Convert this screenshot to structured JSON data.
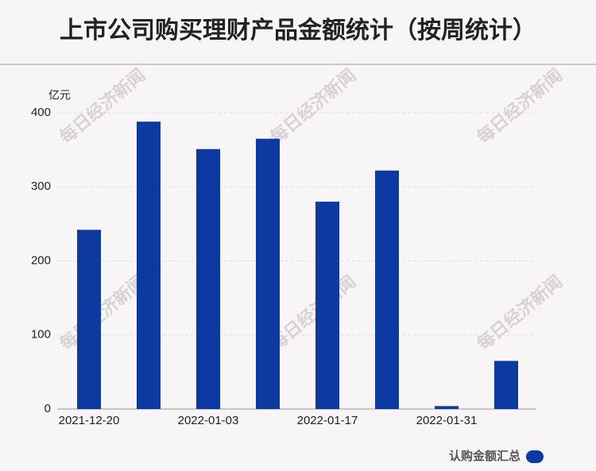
{
  "chart_data": {
    "type": "bar",
    "title": "上市公司购买理财产品金额统计（按周统计）",
    "y_label": "亿元",
    "watermark": "每日经济新闻",
    "categories": [
      "2021-12-20",
      null,
      "2022-01-03",
      null,
      "2022-01-17",
      null,
      "2022-01-31",
      null
    ],
    "series": [
      {
        "name": "认购金额汇总",
        "color": "#0d3aa0",
        "values": [
          242,
          388,
          351,
          365,
          280,
          322,
          4,
          65
        ]
      }
    ],
    "ylim": [
      0,
      400
    ],
    "yticks": [
      0,
      100,
      200,
      300,
      400
    ],
    "grid": true,
    "legend": "bottom-right"
  }
}
